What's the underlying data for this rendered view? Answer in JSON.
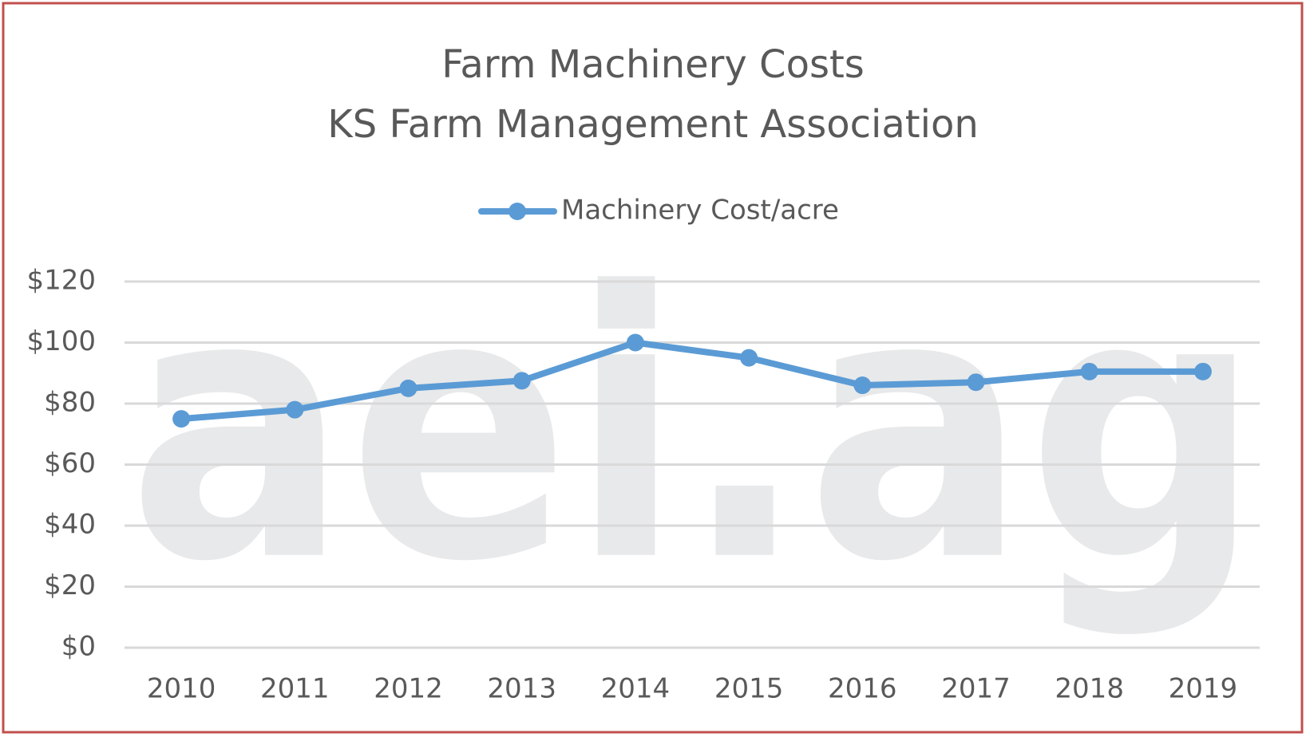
{
  "chart_data": {
    "type": "line",
    "title": "Farm Machinery Costs",
    "subtitle": "KS Farm Management Association",
    "watermark": "aei.ag",
    "categories": [
      "2010",
      "2011",
      "2012",
      "2013",
      "2014",
      "2015",
      "2016",
      "2017",
      "2018",
      "2019"
    ],
    "series": [
      {
        "name": "Machinery Cost/acre",
        "color": "#5b9bd5",
        "values": [
          75,
          78,
          85,
          87.5,
          100,
          95,
          86,
          87,
          90.5,
          90.5
        ]
      }
    ],
    "ylim": [
      0,
      120
    ],
    "yticks": [
      {
        "value": 0,
        "label": "$0"
      },
      {
        "value": 20,
        "label": "$20"
      },
      {
        "value": 40,
        "label": "$40"
      },
      {
        "value": 60,
        "label": "$60"
      },
      {
        "value": 80,
        "label": "$80"
      },
      {
        "value": 100,
        "label": "$100"
      },
      {
        "value": 120,
        "label": "$120"
      }
    ],
    "grid": true,
    "legend": "top"
  }
}
